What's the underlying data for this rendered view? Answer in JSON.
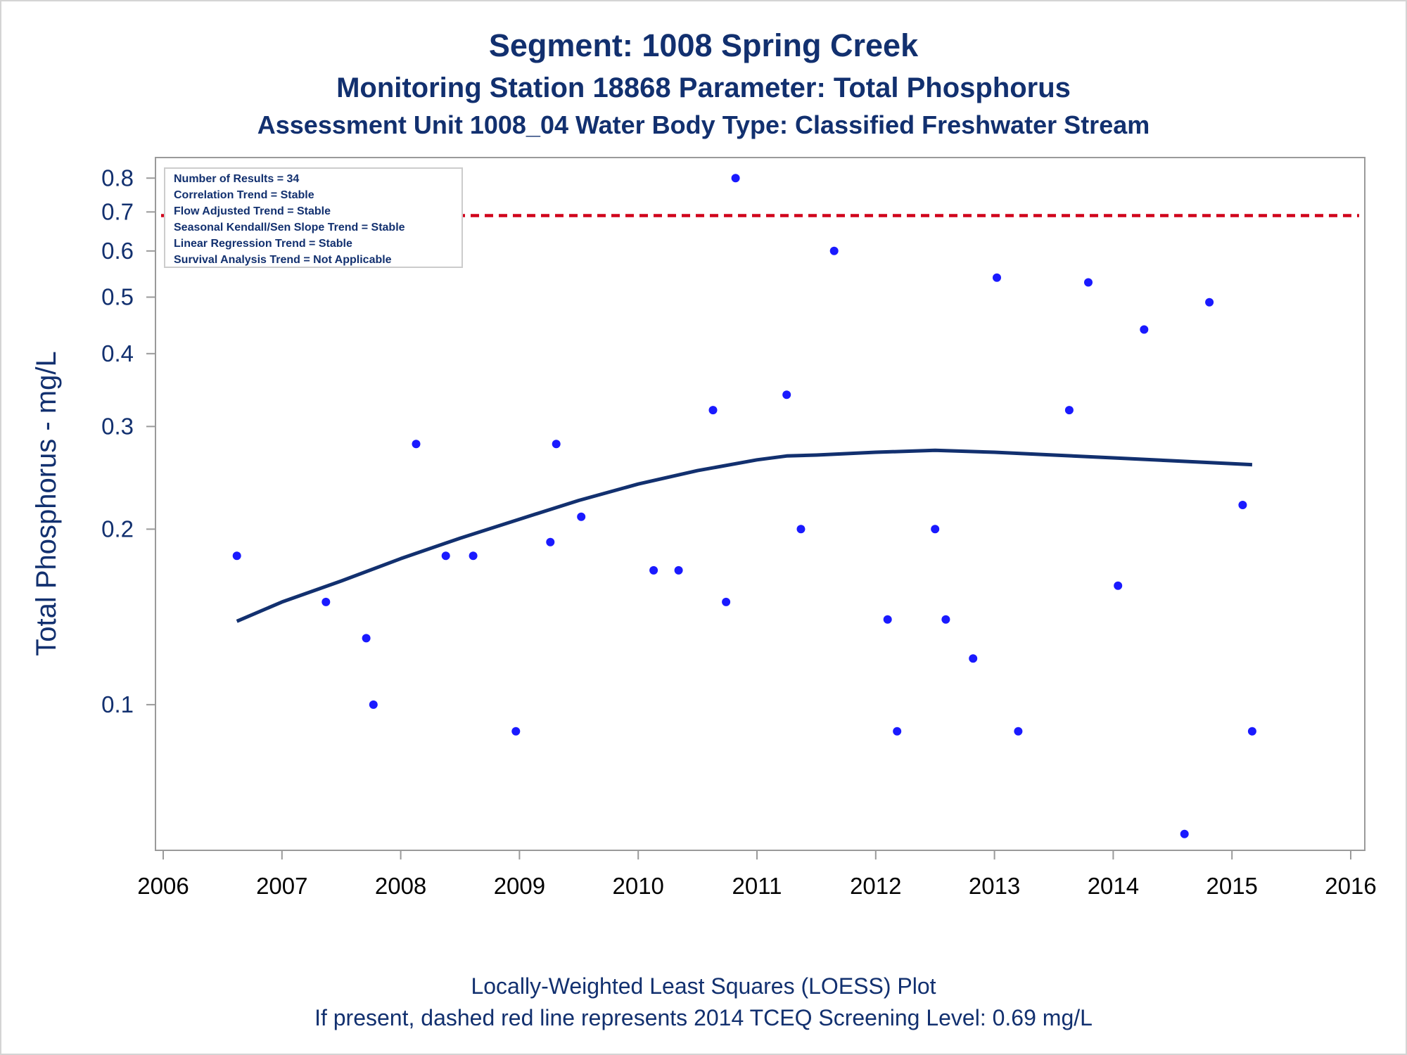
{
  "titles": {
    "line1": "Segment: 1008  Spring Creek",
    "line2": "Monitoring Station 18868 Parameter: Total Phosphorus",
    "line3": "Assessment Unit 1008_04   Water Body Type: Classified Freshwater Stream"
  },
  "stats_box": [
    "Number of Results = 34",
    "Correlation Trend = Stable",
    "Flow Adjusted Trend = Stable",
    "Seasonal Kendall/Sen Slope Trend = Stable",
    "Linear Regression Trend = Stable",
    "Survival Analysis Trend = Not Applicable"
  ],
  "footnotes": {
    "line1": "Locally-Weighted Least Squares (LOESS) Plot",
    "line2": "If present, dashed red line represents 2014 TCEQ Screening Level: 0.69 mg/L"
  },
  "colors": {
    "text": "#12306f",
    "points": "#1a1aff",
    "loess": "#12306f",
    "screening": "#d0021b",
    "axis": "#9a9a9a"
  },
  "chart_data": {
    "type": "scatter",
    "xlabel": "",
    "ylabel": "Total Phosphorus - mg/L",
    "xlim": [
      2006,
      2016
    ],
    "ylim": [
      0.058,
      0.83
    ],
    "yscale": "log",
    "x_ticks": [
      2006,
      2007,
      2008,
      2009,
      2010,
      2011,
      2012,
      2013,
      2014,
      2015,
      2016
    ],
    "y_ticks": [
      0.1,
      0.2,
      0.3,
      0.4,
      0.5,
      0.6,
      0.7,
      0.8
    ],
    "screening_level": 0.69,
    "points": [
      [
        2006.62,
        0.18
      ],
      [
        2007.37,
        0.15
      ],
      [
        2007.71,
        0.13
      ],
      [
        2007.77,
        0.1
      ],
      [
        2008.13,
        0.28
      ],
      [
        2008.38,
        0.18
      ],
      [
        2008.61,
        0.18
      ],
      [
        2008.97,
        0.09
      ],
      [
        2009.26,
        0.19
      ],
      [
        2009.31,
        0.28
      ],
      [
        2009.52,
        0.21
      ],
      [
        2010.13,
        0.17
      ],
      [
        2010.34,
        0.17
      ],
      [
        2010.63,
        0.32
      ],
      [
        2010.74,
        0.15
      ],
      [
        2010.82,
        0.8
      ],
      [
        2011.25,
        0.34
      ],
      [
        2011.37,
        0.2
      ],
      [
        2011.65,
        0.6
      ],
      [
        2012.1,
        0.14
      ],
      [
        2012.18,
        0.09
      ],
      [
        2012.5,
        0.2
      ],
      [
        2012.59,
        0.14
      ],
      [
        2012.82,
        0.12
      ],
      [
        2013.02,
        0.54
      ],
      [
        2013.2,
        0.09
      ],
      [
        2013.63,
        0.32
      ],
      [
        2013.79,
        0.53
      ],
      [
        2014.04,
        0.16
      ],
      [
        2014.26,
        0.44
      ],
      [
        2014.6,
        0.06
      ],
      [
        2014.81,
        0.49
      ],
      [
        2015.09,
        0.22
      ],
      [
        2015.17,
        0.09
      ]
    ],
    "loess": [
      [
        2006.62,
        0.139
      ],
      [
        2007.0,
        0.15
      ],
      [
        2007.5,
        0.163
      ],
      [
        2008.0,
        0.178
      ],
      [
        2008.5,
        0.193
      ],
      [
        2009.0,
        0.208
      ],
      [
        2009.5,
        0.224
      ],
      [
        2010.0,
        0.239
      ],
      [
        2010.5,
        0.252
      ],
      [
        2011.0,
        0.263
      ],
      [
        2011.25,
        0.267
      ],
      [
        2011.5,
        0.268
      ],
      [
        2012.0,
        0.271
      ],
      [
        2012.5,
        0.273
      ],
      [
        2013.0,
        0.271
      ],
      [
        2013.5,
        0.268
      ],
      [
        2014.0,
        0.265
      ],
      [
        2014.5,
        0.262
      ],
      [
        2015.0,
        0.259
      ],
      [
        2015.17,
        0.258
      ]
    ]
  }
}
